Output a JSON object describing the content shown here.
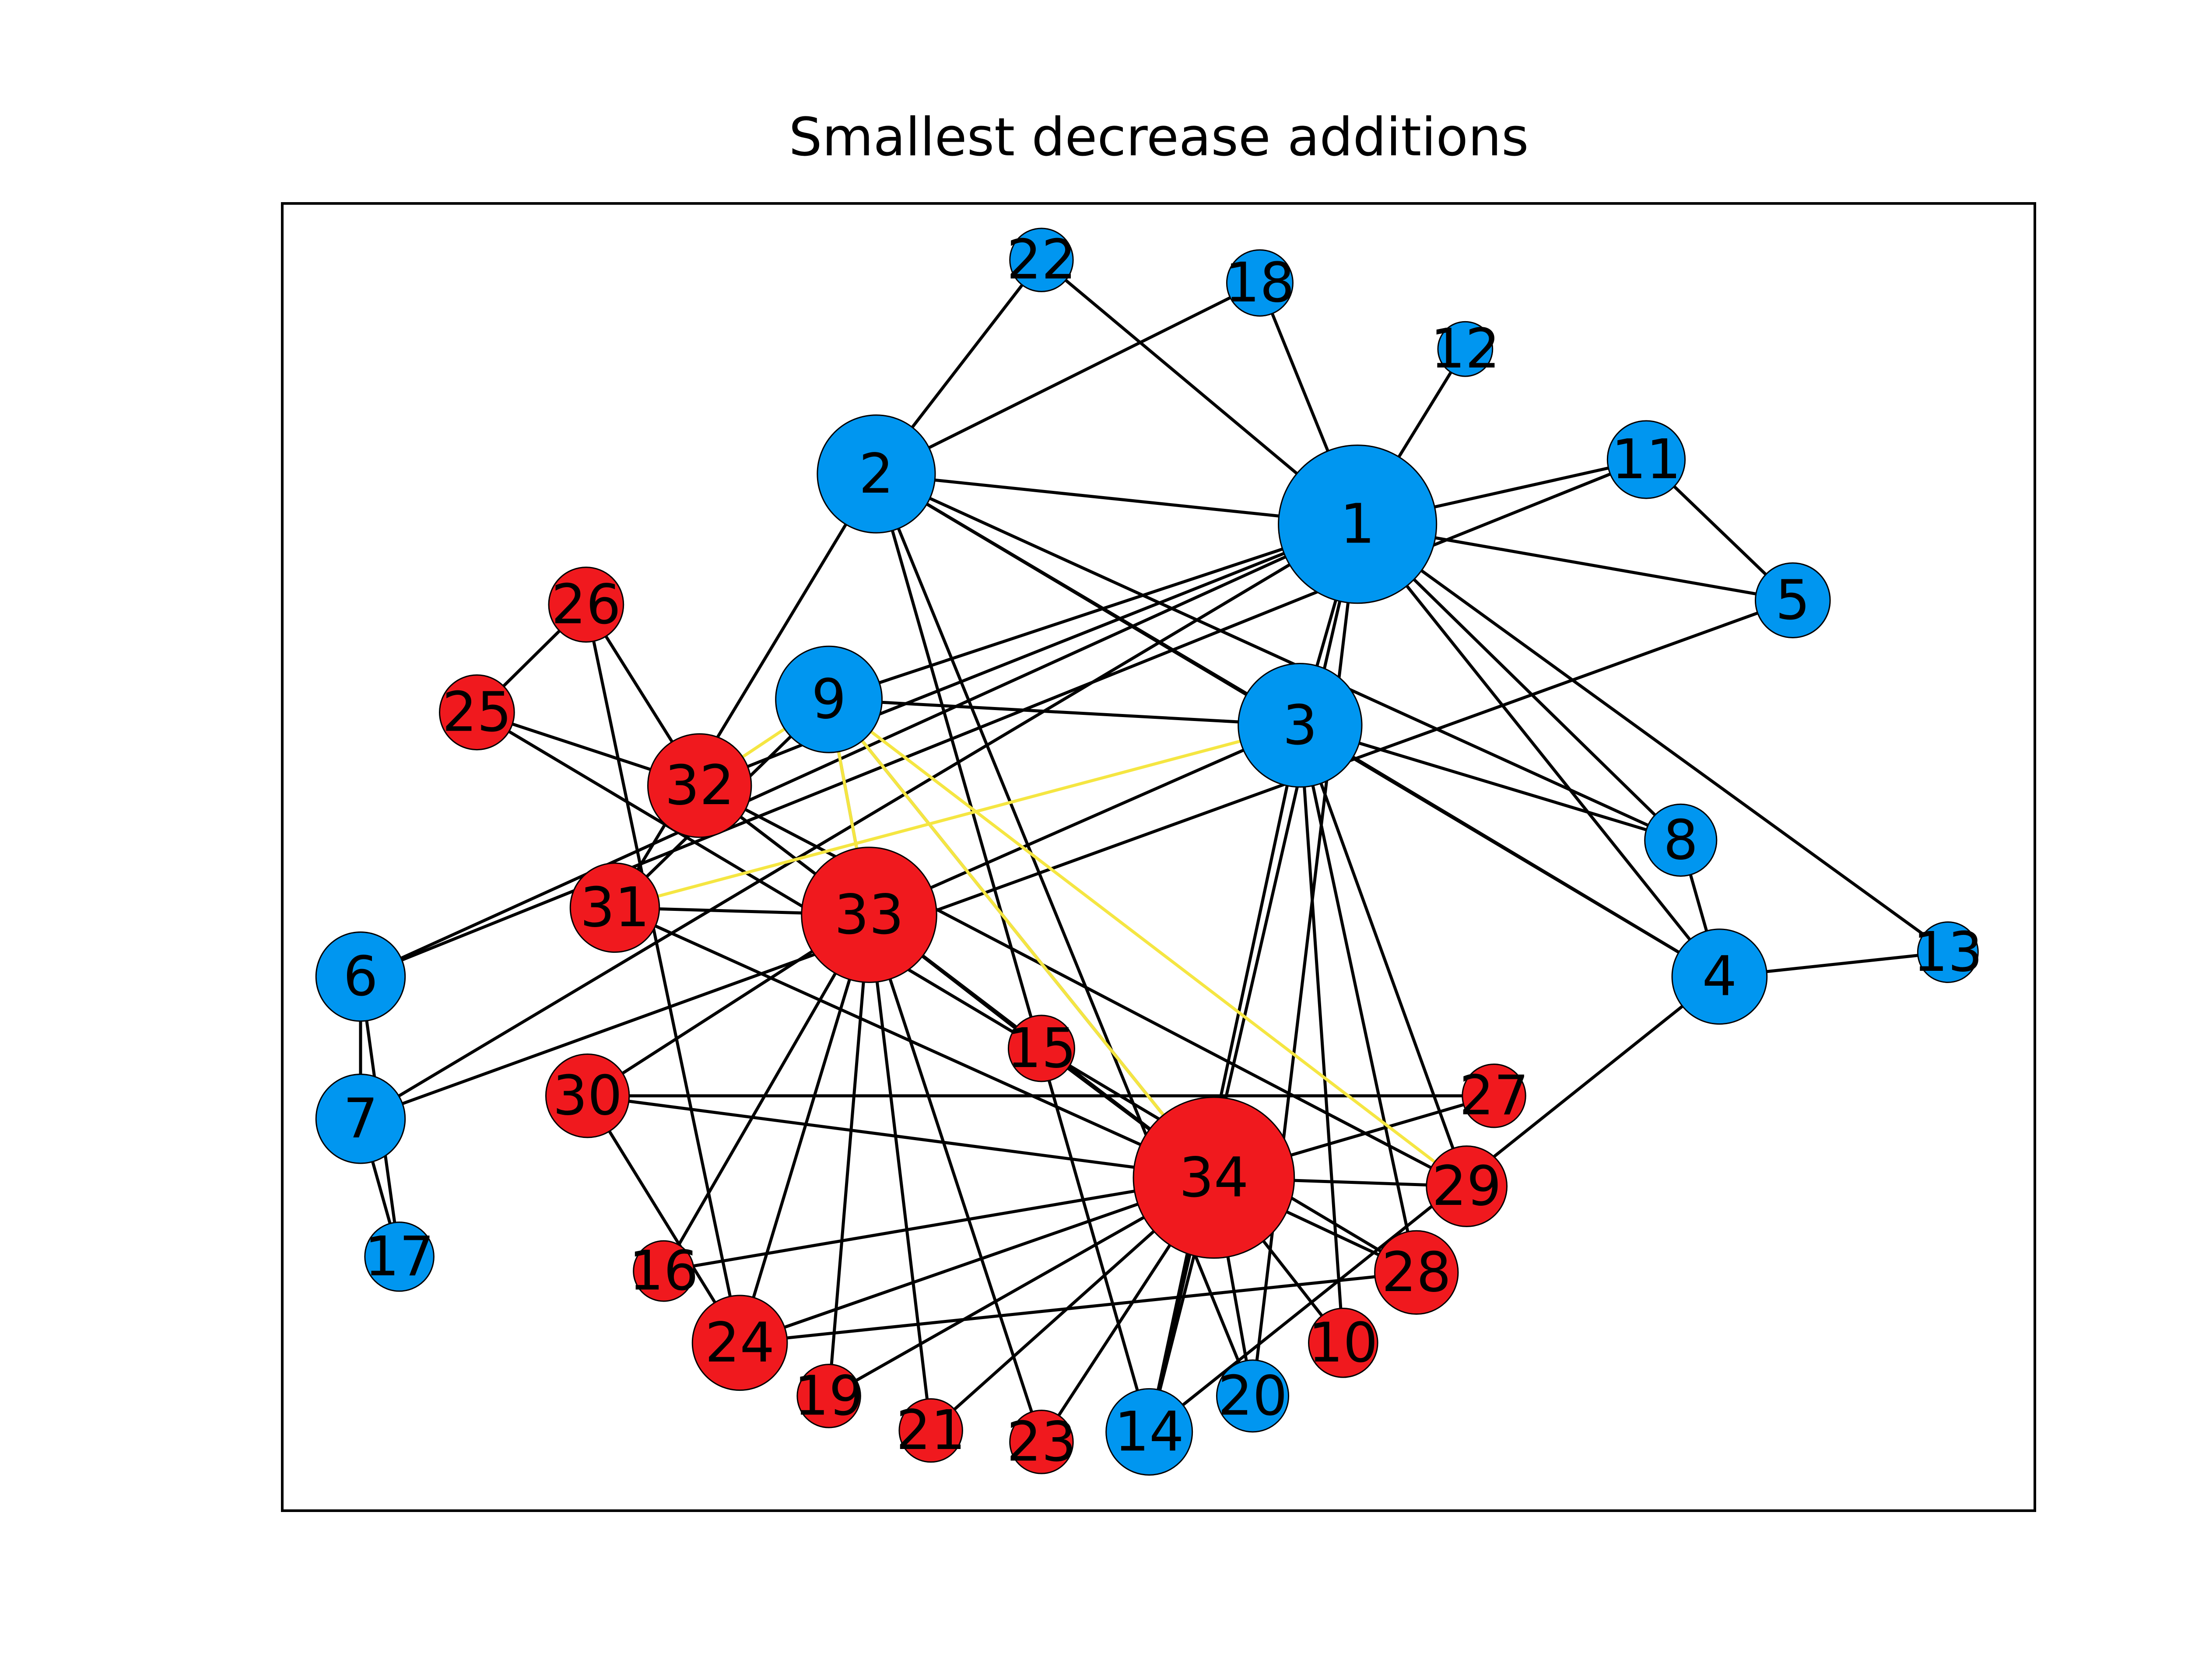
{
  "title": "Smallest decrease additions",
  "colors": {
    "group_blue": "#0096f0",
    "group_red": "#f0191e",
    "edge": "#000000",
    "added_edge": "#f5e642",
    "frame": "#000000",
    "background": "#ffffff"
  },
  "nodes": [
    {
      "id": "1",
      "group": "blue"
    },
    {
      "id": "2",
      "group": "blue"
    },
    {
      "id": "3",
      "group": "blue"
    },
    {
      "id": "4",
      "group": "blue"
    },
    {
      "id": "5",
      "group": "blue"
    },
    {
      "id": "6",
      "group": "blue"
    },
    {
      "id": "7",
      "group": "blue"
    },
    {
      "id": "8",
      "group": "blue"
    },
    {
      "id": "9",
      "group": "blue"
    },
    {
      "id": "10",
      "group": "red"
    },
    {
      "id": "11",
      "group": "blue"
    },
    {
      "id": "12",
      "group": "blue"
    },
    {
      "id": "13",
      "group": "blue"
    },
    {
      "id": "14",
      "group": "blue"
    },
    {
      "id": "15",
      "group": "red"
    },
    {
      "id": "16",
      "group": "red"
    },
    {
      "id": "17",
      "group": "blue"
    },
    {
      "id": "18",
      "group": "blue"
    },
    {
      "id": "19",
      "group": "red"
    },
    {
      "id": "20",
      "group": "blue"
    },
    {
      "id": "21",
      "group": "red"
    },
    {
      "id": "22",
      "group": "blue"
    },
    {
      "id": "23",
      "group": "red"
    },
    {
      "id": "24",
      "group": "red"
    },
    {
      "id": "25",
      "group": "red"
    },
    {
      "id": "26",
      "group": "red"
    },
    {
      "id": "27",
      "group": "red"
    },
    {
      "id": "28",
      "group": "red"
    },
    {
      "id": "29",
      "group": "red"
    },
    {
      "id": "30",
      "group": "red"
    },
    {
      "id": "31",
      "group": "red"
    },
    {
      "id": "32",
      "group": "red"
    },
    {
      "id": "33",
      "group": "red"
    },
    {
      "id": "34",
      "group": "red"
    }
  ],
  "edges": [
    [
      "1",
      "2"
    ],
    [
      "1",
      "3"
    ],
    [
      "1",
      "4"
    ],
    [
      "1",
      "5"
    ],
    [
      "1",
      "6"
    ],
    [
      "1",
      "7"
    ],
    [
      "1",
      "8"
    ],
    [
      "1",
      "9"
    ],
    [
      "1",
      "11"
    ],
    [
      "1",
      "12"
    ],
    [
      "1",
      "13"
    ],
    [
      "1",
      "14"
    ],
    [
      "1",
      "18"
    ],
    [
      "1",
      "20"
    ],
    [
      "1",
      "22"
    ],
    [
      "1",
      "32"
    ],
    [
      "2",
      "3"
    ],
    [
      "2",
      "4"
    ],
    [
      "2",
      "8"
    ],
    [
      "2",
      "14"
    ],
    [
      "2",
      "18"
    ],
    [
      "2",
      "20"
    ],
    [
      "2",
      "22"
    ],
    [
      "2",
      "31"
    ],
    [
      "3",
      "4"
    ],
    [
      "3",
      "8"
    ],
    [
      "3",
      "9"
    ],
    [
      "3",
      "10"
    ],
    [
      "3",
      "14"
    ],
    [
      "3",
      "28"
    ],
    [
      "3",
      "29"
    ],
    [
      "3",
      "33"
    ],
    [
      "4",
      "8"
    ],
    [
      "4",
      "13"
    ],
    [
      "4",
      "14"
    ],
    [
      "5",
      "7"
    ],
    [
      "5",
      "11"
    ],
    [
      "6",
      "7"
    ],
    [
      "6",
      "11"
    ],
    [
      "6",
      "17"
    ],
    [
      "7",
      "17"
    ],
    [
      "9",
      "31"
    ],
    [
      "9",
      "33"
    ],
    [
      "9",
      "34"
    ],
    [
      "10",
      "34"
    ],
    [
      "14",
      "34"
    ],
    [
      "15",
      "33"
    ],
    [
      "15",
      "34"
    ],
    [
      "16",
      "33"
    ],
    [
      "16",
      "34"
    ],
    [
      "19",
      "33"
    ],
    [
      "19",
      "34"
    ],
    [
      "20",
      "34"
    ],
    [
      "21",
      "33"
    ],
    [
      "21",
      "34"
    ],
    [
      "23",
      "33"
    ],
    [
      "23",
      "34"
    ],
    [
      "24",
      "26"
    ],
    [
      "24",
      "28"
    ],
    [
      "24",
      "30"
    ],
    [
      "24",
      "33"
    ],
    [
      "24",
      "34"
    ],
    [
      "25",
      "26"
    ],
    [
      "25",
      "28"
    ],
    [
      "25",
      "32"
    ],
    [
      "26",
      "32"
    ],
    [
      "27",
      "30"
    ],
    [
      "27",
      "34"
    ],
    [
      "28",
      "34"
    ],
    [
      "29",
      "32"
    ],
    [
      "29",
      "34"
    ],
    [
      "30",
      "33"
    ],
    [
      "30",
      "34"
    ],
    [
      "31",
      "33"
    ],
    [
      "31",
      "34"
    ],
    [
      "32",
      "33"
    ],
    [
      "32",
      "34"
    ],
    [
      "33",
      "34"
    ]
  ],
  "added_edges": [
    [
      "9",
      "32"
    ],
    [
      "9",
      "33"
    ],
    [
      "9",
      "29"
    ],
    [
      "9",
      "34"
    ],
    [
      "3",
      "31"
    ]
  ]
}
